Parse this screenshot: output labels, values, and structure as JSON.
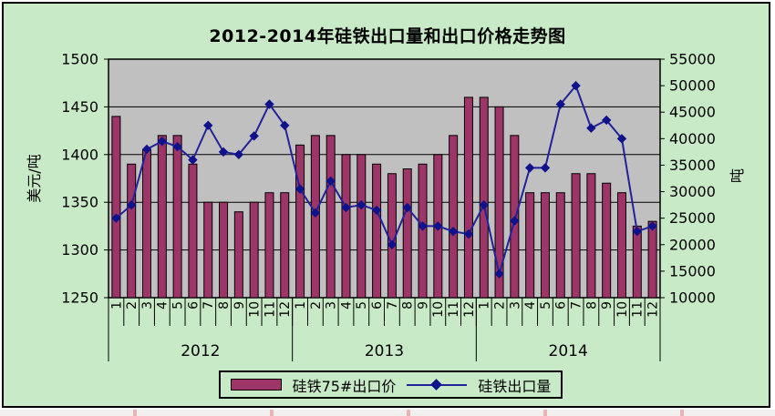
{
  "title": "2012-2014年硅铁出口量和出口价格走势图",
  "left_axis_title": "美元/吨",
  "right_axis_title": "吨",
  "legend": {
    "price_label": "硅铁75#出口价",
    "volume_label": "硅铁出口量"
  },
  "colors": {
    "background": "#c8eac6",
    "plot_background": "#c0c0c0",
    "bar_fill": "#9e3568",
    "line": "#222299",
    "marker": "#10128c",
    "axis_text": "#000000"
  },
  "chart_data": {
    "type": "bar+line",
    "title": "2012-2014年硅铁出口量和出口价格走势图",
    "years": [
      "2012",
      "2013",
      "2014"
    ],
    "months": [
      "1",
      "2",
      "3",
      "4",
      "5",
      "6",
      "7",
      "8",
      "9",
      "10",
      "11",
      "12"
    ],
    "left_axis": {
      "label": "美元/吨",
      "min": 1250,
      "max": 1500,
      "ticks": [
        1500,
        1450,
        1400,
        1350,
        1300,
        1250
      ]
    },
    "right_axis": {
      "label": "吨",
      "min": 10000,
      "max": 55000,
      "ticks": [
        55000,
        50000,
        45000,
        40000,
        35000,
        30000,
        25000,
        20000,
        15000,
        10000
      ]
    },
    "grid": true,
    "legend_position": "bottom",
    "series": [
      {
        "name": "硅铁75#出口价",
        "type": "bar",
        "axis": "left",
        "values": [
          1440,
          1390,
          1405,
          1420,
          1420,
          1390,
          1350,
          1350,
          1340,
          1350,
          1360,
          1360,
          1410,
          1420,
          1420,
          1400,
          1400,
          1390,
          1380,
          1385,
          1390,
          1400,
          1420,
          1460,
          1460,
          1450,
          1420,
          1360,
          1360,
          1360,
          1380,
          1380,
          1370,
          1360,
          1325,
          1330
        ]
      },
      {
        "name": "硅铁出口量",
        "type": "line",
        "axis": "right",
        "values": [
          25000,
          27500,
          38000,
          39500,
          38500,
          36000,
          42500,
          37500,
          37000,
          40500,
          46500,
          42500,
          30500,
          26000,
          32000,
          27000,
          27500,
          26500,
          20000,
          27000,
          23500,
          23500,
          22500,
          22000,
          27500,
          14500,
          24500,
          34500,
          34500,
          46500,
          50000,
          42000,
          43500,
          40000,
          22500,
          23500
        ]
      }
    ]
  }
}
